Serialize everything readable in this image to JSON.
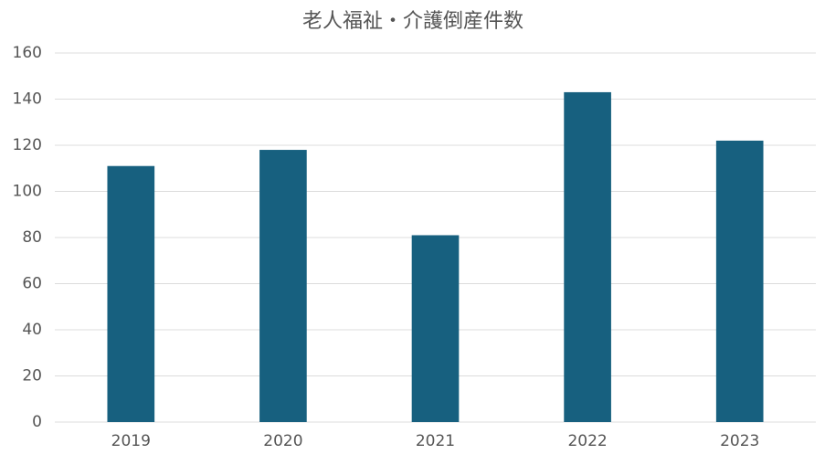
{
  "chart_data": {
    "type": "bar",
    "title": "老人福祉・介護倒産件数",
    "categories": [
      "2019",
      "2020",
      "2021",
      "2022",
      "2023"
    ],
    "values": [
      111,
      118,
      81,
      143,
      122
    ],
    "color": "#17607f",
    "ylim": [
      0,
      160
    ],
    "yticks": [
      0,
      20,
      40,
      60,
      80,
      100,
      120,
      140,
      160
    ],
    "grid": true
  }
}
